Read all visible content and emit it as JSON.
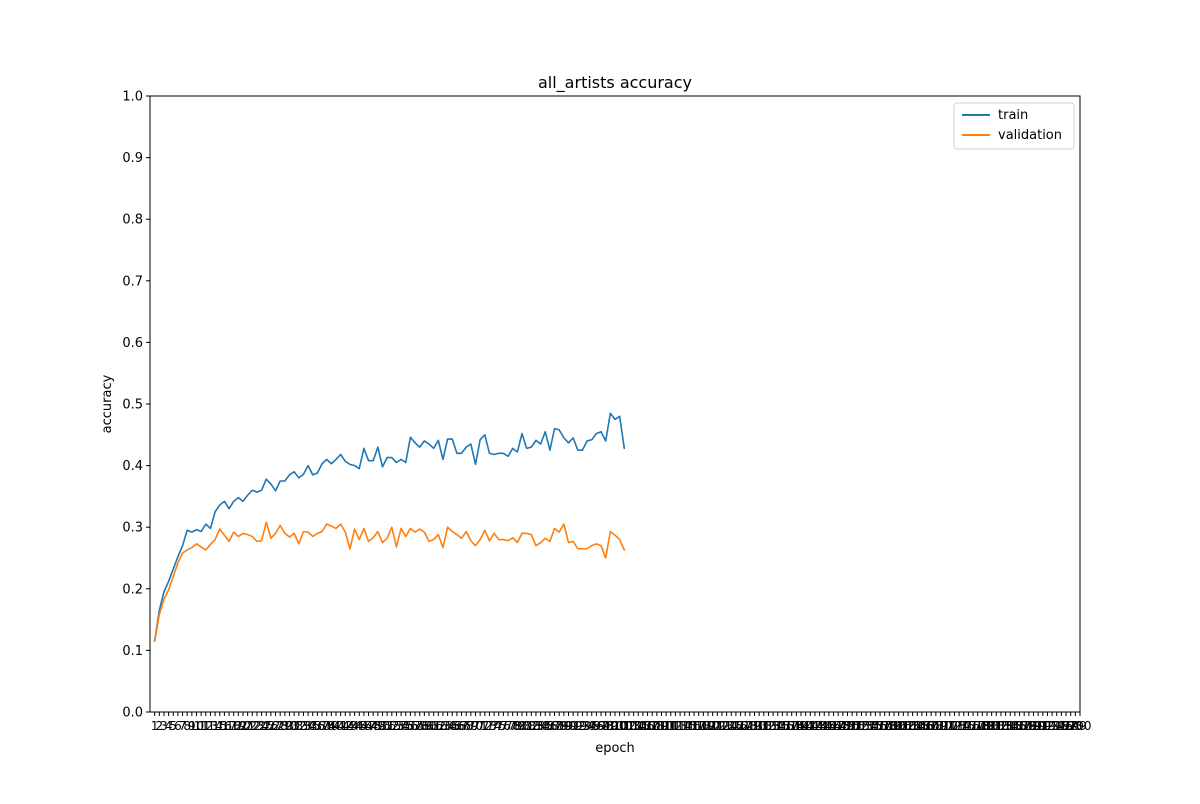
{
  "chart_data": {
    "type": "line",
    "title": "all_artists accuracy",
    "xlabel": "epoch",
    "ylabel": "accuracy",
    "xlim": [
      0,
      200
    ],
    "ylim": [
      0.0,
      1.0
    ],
    "x_start": 1,
    "x_tick_labels": [
      "1",
      "2",
      "3",
      "4",
      "5",
      "6",
      "7",
      "8",
      "9",
      "10",
      "11",
      "12",
      "13",
      "14",
      "15",
      "16",
      "17",
      "18",
      "19",
      "20",
      "21",
      "22",
      "23",
      "24",
      "25",
      "26",
      "27",
      "28",
      "29",
      "30",
      "31",
      "32",
      "33",
      "34",
      "35",
      "36",
      "37",
      "38",
      "39",
      "40",
      "41",
      "42",
      "43",
      "44",
      "45",
      "46",
      "47",
      "48",
      "49",
      "50",
      "51",
      "52",
      "53",
      "54",
      "55",
      "56",
      "57",
      "58",
      "59",
      "60",
      "61",
      "62",
      "63",
      "64",
      "65",
      "66",
      "67",
      "68",
      "69",
      "70",
      "71",
      "72",
      "73",
      "74",
      "75",
      "76",
      "77",
      "78",
      "79",
      "80",
      "81",
      "82",
      "83",
      "84",
      "85",
      "86",
      "87",
      "88",
      "89",
      "90",
      "91",
      "92",
      "93",
      "94",
      "95",
      "96",
      "97",
      "98",
      "99",
      "100",
      "101",
      "102",
      "103",
      "104",
      "105",
      "106",
      "107",
      "108",
      "109",
      "110",
      "111",
      "112",
      "113",
      "114",
      "115",
      "116",
      "117",
      "118",
      "119",
      "120",
      "121",
      "122",
      "123",
      "124",
      "125",
      "126",
      "127",
      "128",
      "129",
      "130",
      "131",
      "132",
      "133",
      "134",
      "135",
      "136",
      "137",
      "138",
      "139",
      "140",
      "141",
      "142",
      "143",
      "144",
      "145",
      "146",
      "147",
      "148",
      "149",
      "150",
      "151",
      "152",
      "153",
      "154",
      "155",
      "156",
      "157",
      "158",
      "159",
      "160",
      "161",
      "162",
      "163",
      "164",
      "165",
      "166",
      "167",
      "168",
      "169",
      "170",
      "171",
      "172",
      "173",
      "174",
      "175",
      "176",
      "177",
      "178",
      "179",
      "180",
      "181",
      "182",
      "183",
      "184",
      "185",
      "186",
      "187",
      "188",
      "189",
      "190",
      "191",
      "192",
      "193",
      "194",
      "195",
      "196",
      "197",
      "198",
      "199",
      "200"
    ],
    "y_tick_labels": [
      "0.0",
      "0.1",
      "0.2",
      "0.3",
      "0.4",
      "0.5",
      "0.6",
      "0.7",
      "0.8",
      "0.9",
      "1.0"
    ],
    "legend_position": "top-right",
    "series": [
      {
        "name": "train",
        "color": "#1f77b4",
        "values": [
          0.115,
          0.165,
          0.195,
          0.212,
          0.232,
          0.252,
          0.27,
          0.295,
          0.292,
          0.296,
          0.293,
          0.305,
          0.298,
          0.325,
          0.336,
          0.342,
          0.33,
          0.342,
          0.348,
          0.342,
          0.352,
          0.36,
          0.357,
          0.36,
          0.378,
          0.37,
          0.359,
          0.375,
          0.375,
          0.385,
          0.39,
          0.38,
          0.386,
          0.4,
          0.385,
          0.388,
          0.403,
          0.41,
          0.403,
          0.41,
          0.418,
          0.407,
          0.402,
          0.4,
          0.395,
          0.428,
          0.408,
          0.408,
          0.43,
          0.398,
          0.413,
          0.413,
          0.405,
          0.41,
          0.405,
          0.446,
          0.437,
          0.43,
          0.44,
          0.435,
          0.428,
          0.441,
          0.41,
          0.443,
          0.443,
          0.42,
          0.42,
          0.43,
          0.435,
          0.402,
          0.442,
          0.45,
          0.42,
          0.418,
          0.42,
          0.42,
          0.415,
          0.428,
          0.422,
          0.452,
          0.428,
          0.43,
          0.441,
          0.435,
          0.455,
          0.425,
          0.46,
          0.458,
          0.445,
          0.437,
          0.445,
          0.425,
          0.425,
          0.44,
          0.442,
          0.452,
          0.455,
          0.44,
          0.485,
          0.475,
          0.48,
          0.428
        ]
      },
      {
        "name": "validation",
        "color": "#ff7f0e",
        "values": [
          0.115,
          0.158,
          0.183,
          0.198,
          0.22,
          0.242,
          0.258,
          0.263,
          0.267,
          0.273,
          0.268,
          0.263,
          0.272,
          0.28,
          0.297,
          0.287,
          0.277,
          0.292,
          0.285,
          0.29,
          0.288,
          0.285,
          0.277,
          0.278,
          0.308,
          0.282,
          0.29,
          0.303,
          0.29,
          0.284,
          0.29,
          0.273,
          0.293,
          0.292,
          0.285,
          0.29,
          0.293,
          0.305,
          0.302,
          0.298,
          0.305,
          0.292,
          0.265,
          0.297,
          0.28,
          0.298,
          0.277,
          0.283,
          0.293,
          0.275,
          0.282,
          0.3,
          0.268,
          0.298,
          0.285,
          0.298,
          0.292,
          0.297,
          0.292,
          0.277,
          0.28,
          0.288,
          0.267,
          0.3,
          0.293,
          0.288,
          0.282,
          0.293,
          0.278,
          0.27,
          0.28,
          0.295,
          0.278,
          0.29,
          0.28,
          0.28,
          0.278,
          0.283,
          0.275,
          0.29,
          0.29,
          0.288,
          0.27,
          0.275,
          0.282,
          0.277,
          0.298,
          0.292,
          0.305,
          0.275,
          0.277,
          0.265,
          0.265,
          0.265,
          0.27,
          0.273,
          0.27,
          0.25,
          0.293,
          0.287,
          0.28,
          0.263
        ]
      }
    ]
  }
}
